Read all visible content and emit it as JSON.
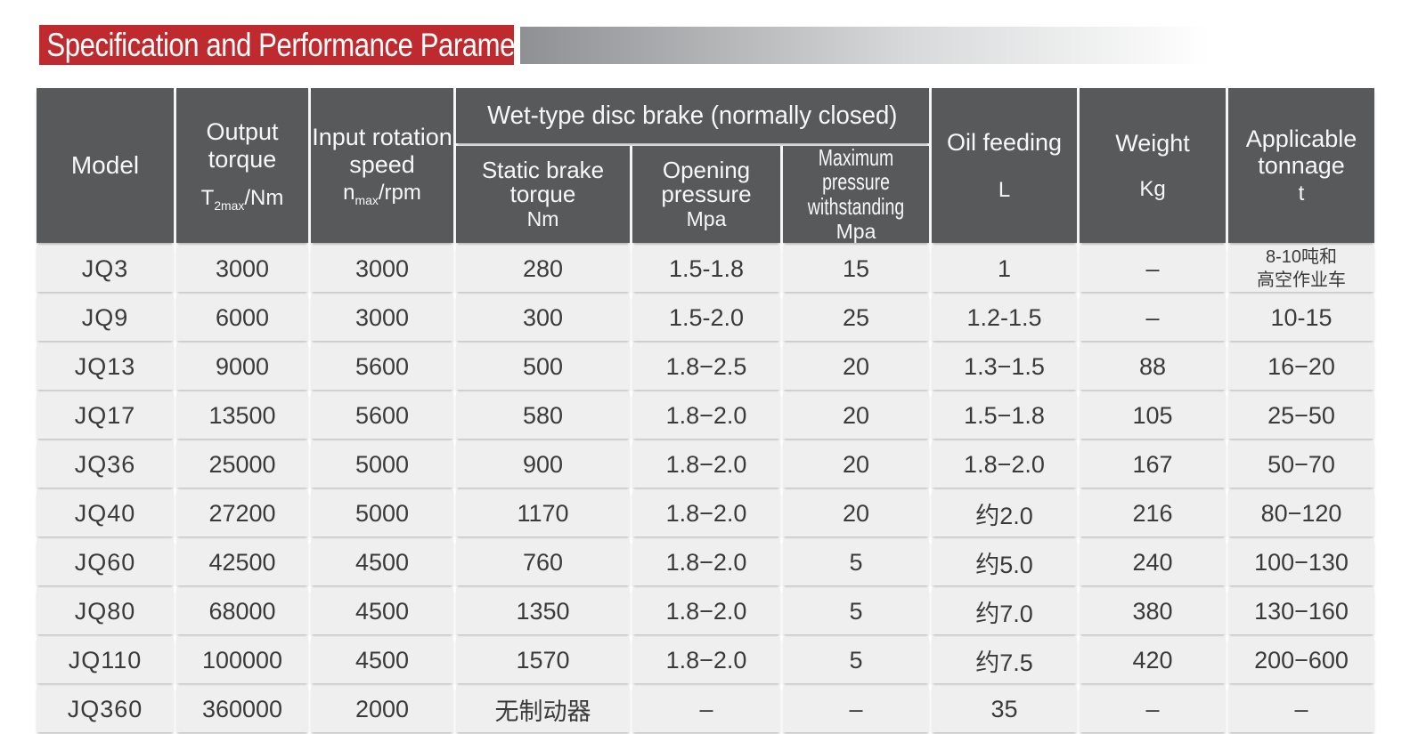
{
  "title_banner": {
    "text": "Specification and Performance Parameters"
  },
  "colors": {
    "accent_red": "#bf2a2e",
    "header_bg": "#58595b",
    "row_bg": "#efefef",
    "text_dark": "#3a3a3a",
    "gradient_start": "#8e9093"
  },
  "table": {
    "col_keys": [
      "model",
      "output-torque",
      "input-rotation-speed",
      "static-brake-torque",
      "opening-pressure",
      "max-pressure-withstanding",
      "oil-feeding",
      "weight",
      "applicable-tonnage"
    ],
    "header": {
      "model": "Model",
      "output_torque": {
        "name": "Output torque",
        "unit_base": "T",
        "unit_sub": "2max",
        "unit_rest": "/Nm"
      },
      "input_speed": {
        "name": "Input rotation speed",
        "unit_base": "n",
        "unit_sub": "max",
        "unit_rest": "/rpm"
      },
      "brake_group": "Wet-type disc brake (normally closed)",
      "static_brake": {
        "name": "Static brake torque",
        "unit": "Nm"
      },
      "opening_pressure": {
        "name": "Opening pressure",
        "unit": "Mpa"
      },
      "max_pressure": {
        "name": "Maximum pressure withstanding",
        "unit": "Mpa"
      },
      "oil_feeding": {
        "name": "Oil feeding",
        "unit": "L"
      },
      "weight": {
        "name": "Weight",
        "unit": "Kg"
      },
      "applicable_tonnage": {
        "name": "Applicable tonnage",
        "unit": "t"
      }
    },
    "rows": [
      {
        "cells": [
          "JQ3",
          "3000",
          "3000",
          "280",
          "1.5-1.8",
          "15",
          "1",
          "–",
          "8-10吨和\n高空作业车"
        ]
      },
      {
        "cells": [
          "JQ9",
          "6000",
          "3000",
          "300",
          "1.5-2.0",
          "25",
          "1.2-1.5",
          "–",
          "10-15"
        ]
      },
      {
        "cells": [
          "JQ13",
          "9000",
          "5600",
          "500",
          "1.8−2.5",
          "20",
          "1.3−1.5",
          "88",
          "16−20"
        ]
      },
      {
        "cells": [
          "JQ17",
          "13500",
          "5600",
          "580",
          "1.8−2.0",
          "20",
          "1.5−1.8",
          "105",
          "25−50"
        ]
      },
      {
        "cells": [
          "JQ36",
          "25000",
          "5000",
          "900",
          "1.8−2.0",
          "20",
          "1.8−2.0",
          "167",
          "50−70"
        ]
      },
      {
        "cells": [
          "JQ40",
          "27200",
          "5000",
          "1170",
          "1.8−2.0",
          "20",
          "约2.0",
          "216",
          "80−120"
        ]
      },
      {
        "cells": [
          "JQ60",
          "42500",
          "4500",
          "760",
          "1.8−2.0",
          "5",
          "约5.0",
          "240",
          "100−130"
        ]
      },
      {
        "cells": [
          "JQ80",
          "68000",
          "4500",
          "1350",
          "1.8−2.0",
          "5",
          "约7.0",
          "380",
          "130−160"
        ]
      },
      {
        "cells": [
          "JQ110",
          "100000",
          "4500",
          "1570",
          "1.8−2.0",
          "5",
          "约7.5",
          "420",
          "200−600"
        ]
      },
      {
        "cells": [
          "JQ360",
          "360000",
          "2000",
          "无制动器",
          "–",
          "–",
          "35",
          "–",
          "–"
        ]
      }
    ]
  }
}
